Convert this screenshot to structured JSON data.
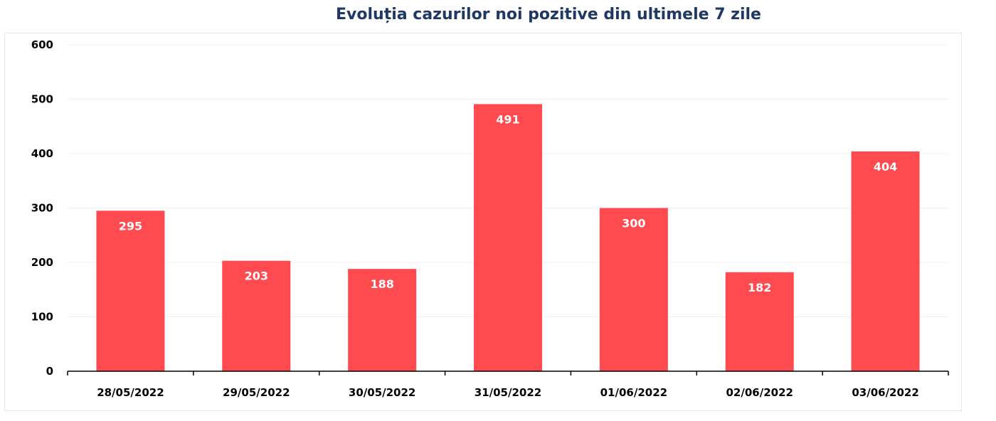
{
  "chart_data": {
    "type": "bar",
    "title": "Evoluția cazurilor noi pozitive din ultimele 7 zile",
    "categories": [
      "28/05/2022",
      "29/05/2022",
      "30/05/2022",
      "31/05/2022",
      "01/06/2022",
      "02/06/2022",
      "03/06/2022"
    ],
    "values": [
      295,
      203,
      188,
      491,
      300,
      182,
      404
    ],
    "data_labels": [
      "295",
      "203",
      "188",
      "491",
      "300",
      "182",
      "404"
    ],
    "ylim": [
      0,
      600
    ],
    "yticks": [
      "0",
      "100",
      "200",
      "300",
      "400",
      "500",
      "600"
    ],
    "grid": true,
    "legend": "none",
    "bar_color": "#ff4a4f"
  }
}
